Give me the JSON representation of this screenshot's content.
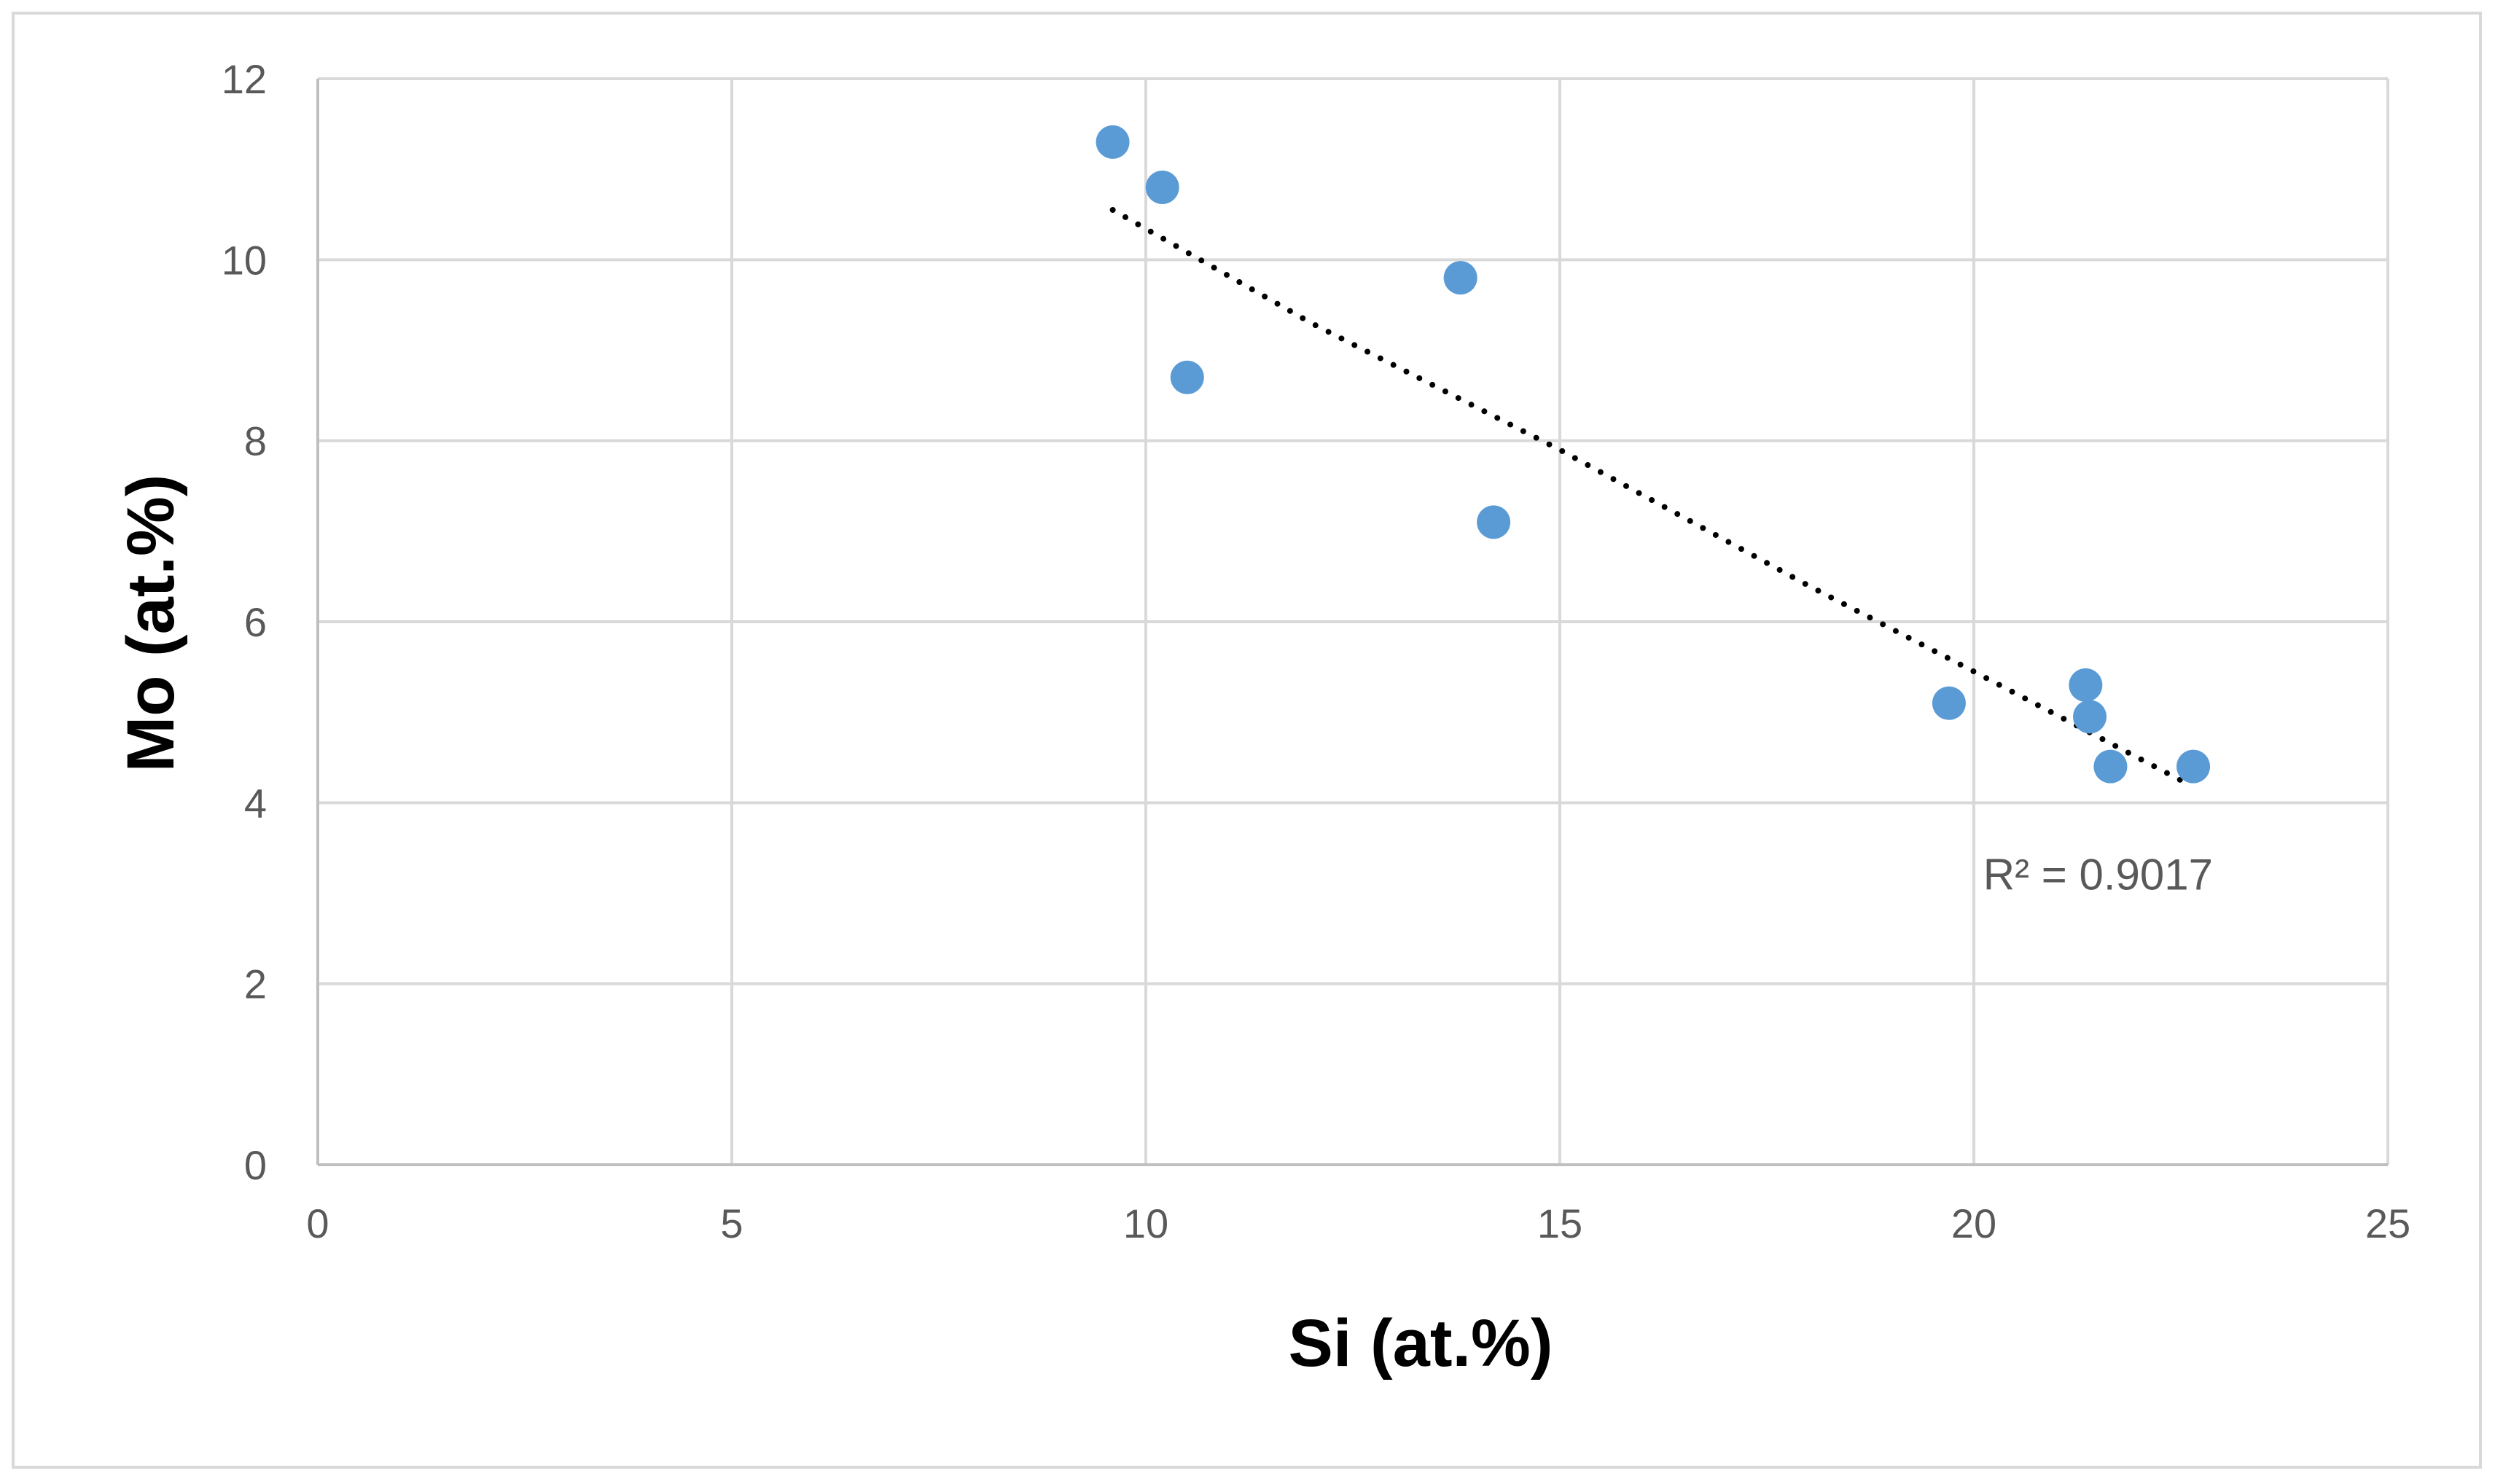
{
  "chart_data": {
    "type": "scatter",
    "xlabel": "Si (at.%)",
    "ylabel": "Mo (at.%)",
    "xlim": [
      0,
      25
    ],
    "ylim": [
      0,
      12
    ],
    "x_ticks": [
      0,
      5,
      10,
      15,
      20,
      25
    ],
    "y_ticks": [
      0,
      2,
      4,
      6,
      8,
      10,
      12
    ],
    "grid": true,
    "legend": "none",
    "series": [
      {
        "color": "#5b9bd5",
        "points": [
          {
            "x": 9.6,
            "y": 11.3
          },
          {
            "x": 10.2,
            "y": 10.8
          },
          {
            "x": 10.5,
            "y": 8.7
          },
          {
            "x": 13.8,
            "y": 9.8
          },
          {
            "x": 14.2,
            "y": 7.1
          },
          {
            "x": 19.7,
            "y": 5.1
          },
          {
            "x": 21.35,
            "y": 5.3
          },
          {
            "x": 21.4,
            "y": 4.95
          },
          {
            "x": 21.65,
            "y": 4.4
          },
          {
            "x": 22.65,
            "y": 4.4
          }
        ]
      }
    ],
    "trendline": {
      "style": "dotted",
      "color": "#000000",
      "points": [
        {
          "x": 9.6,
          "y": 10.55
        },
        {
          "x": 12.0,
          "y": 9.3
        },
        {
          "x": 15.0,
          "y": 7.9
        },
        {
          "x": 18.0,
          "y": 6.4
        },
        {
          "x": 20.0,
          "y": 5.45
        },
        {
          "x": 22.6,
          "y": 4.2
        }
      ]
    },
    "annotations": [
      {
        "text": "R² = 0.9017",
        "x": 21.5,
        "y": 3.2
      }
    ]
  }
}
